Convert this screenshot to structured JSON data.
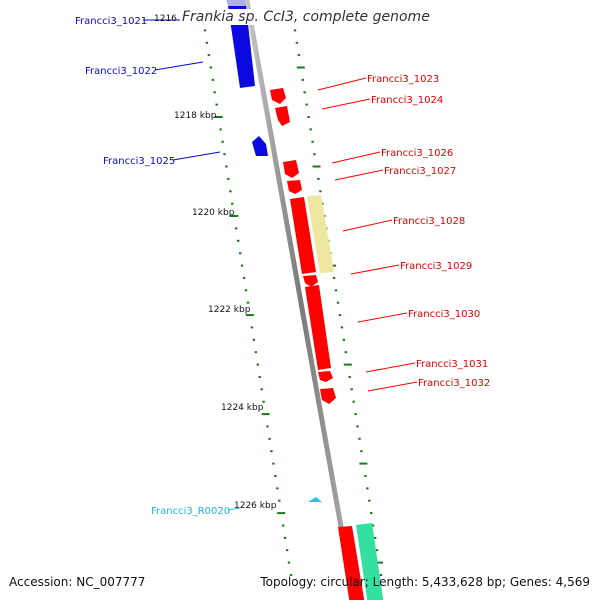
{
  "title": "Frankia sp. CcI3, complete genome",
  "accession": "Accession: NC_007777",
  "footer_info": "Topology: circular; Length: 5,433,628 bp; Genes: 4,569",
  "colors": {
    "backbone": "#888888",
    "tick": "#1a7a1a",
    "forward_gene": "#e00000",
    "reverse_gene": "#0000d0",
    "rna": "#33bbdd",
    "pseudogene": "#eee4a0",
    "other_feature": "#33e0a0"
  },
  "scale_labels": [
    "1216",
    "1218 kbp",
    "1220 kbp",
    "1222 kbp",
    "1224 kbp",
    "1226 kbp"
  ],
  "gene_labels": [
    {
      "text": "Francci3_1021",
      "kind": "reverse"
    },
    {
      "text": "Francci3_1022",
      "kind": "reverse"
    },
    {
      "text": "Francci3_1023",
      "kind": "forward"
    },
    {
      "text": "Francci3_1024",
      "kind": "forward"
    },
    {
      "text": "Francci3_1025",
      "kind": "reverse"
    },
    {
      "text": "Francci3_1026",
      "kind": "forward"
    },
    {
      "text": "Francci3_1027",
      "kind": "forward"
    },
    {
      "text": "Francci3_1028",
      "kind": "forward"
    },
    {
      "text": "Francci3_1029",
      "kind": "forward"
    },
    {
      "text": "Francci3_1030",
      "kind": "forward"
    },
    {
      "text": "Francci3_1031",
      "kind": "forward"
    },
    {
      "text": "Francci3_1032",
      "kind": "forward"
    },
    {
      "text": "Francci3_R0020",
      "kind": "rna"
    }
  ]
}
